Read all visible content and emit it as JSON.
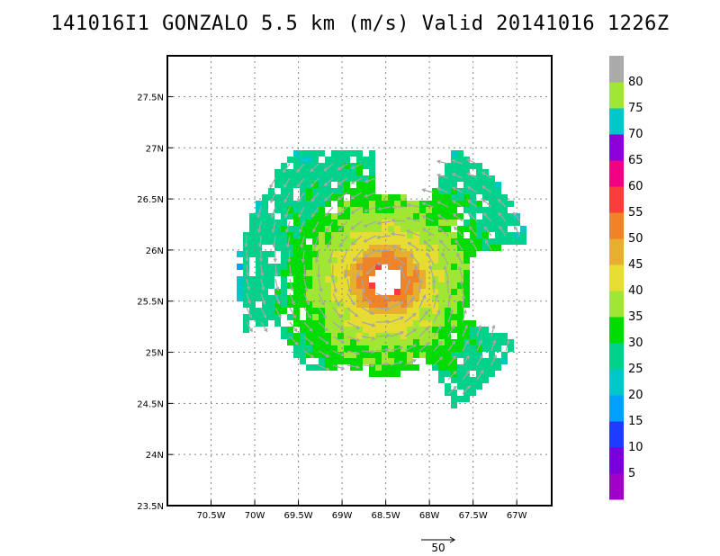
{
  "title": "141016I1 GONZALO 5.5 km (m/s) Valid 20141016 1226Z",
  "chart_data": {
    "type": "heatmap",
    "title": "141016I1 GONZALO 5.5 km (m/s) Valid 20141016 1226Z",
    "variable": "wind speed at 5.5 km",
    "units": "m/s",
    "storm": "GONZALO",
    "valid_time": "20141016 1226Z",
    "lon_range": [
      -71.0,
      -66.6
    ],
    "lat_range": [
      23.5,
      27.9
    ],
    "x_ticks": [
      -70.5,
      -70,
      -69.5,
      -69,
      -68.5,
      -68,
      -67.5,
      -67
    ],
    "x_tick_labels": [
      "70.5W",
      "70W",
      "69.5W",
      "69W",
      "68.5W",
      "68W",
      "67.5W",
      "67W"
    ],
    "y_ticks": [
      23.5,
      24,
      24.5,
      25,
      25.5,
      26,
      26.5,
      27,
      27.5
    ],
    "y_tick_labels": [
      "23.5N",
      "24N",
      "24.5N",
      "25N",
      "25.5N",
      "26N",
      "26.5N",
      "27N",
      "27.5N"
    ],
    "grid": true,
    "storm_center": [
      -68.5,
      25.7
    ],
    "colorbar": {
      "levels": [
        5,
        10,
        15,
        20,
        25,
        30,
        35,
        40,
        45,
        50,
        55,
        60,
        65,
        70,
        75,
        80
      ],
      "colors": [
        "#a000c8",
        "#7800dc",
        "#1e3cff",
        "#00a0ff",
        "#00c8c8",
        "#00d28c",
        "#00dc00",
        "#a0e632",
        "#e6dc32",
        "#e6af2d",
        "#f08228",
        "#fa3c3c",
        "#f00082",
        "#8c00dc",
        "#00c8c8",
        "#a0e632",
        "#aaaaaa"
      ]
    },
    "reference_vector": "50",
    "vector_scale_note": "arrows show wind vectors; cyclonic (counter-clockwise) circulation"
  }
}
